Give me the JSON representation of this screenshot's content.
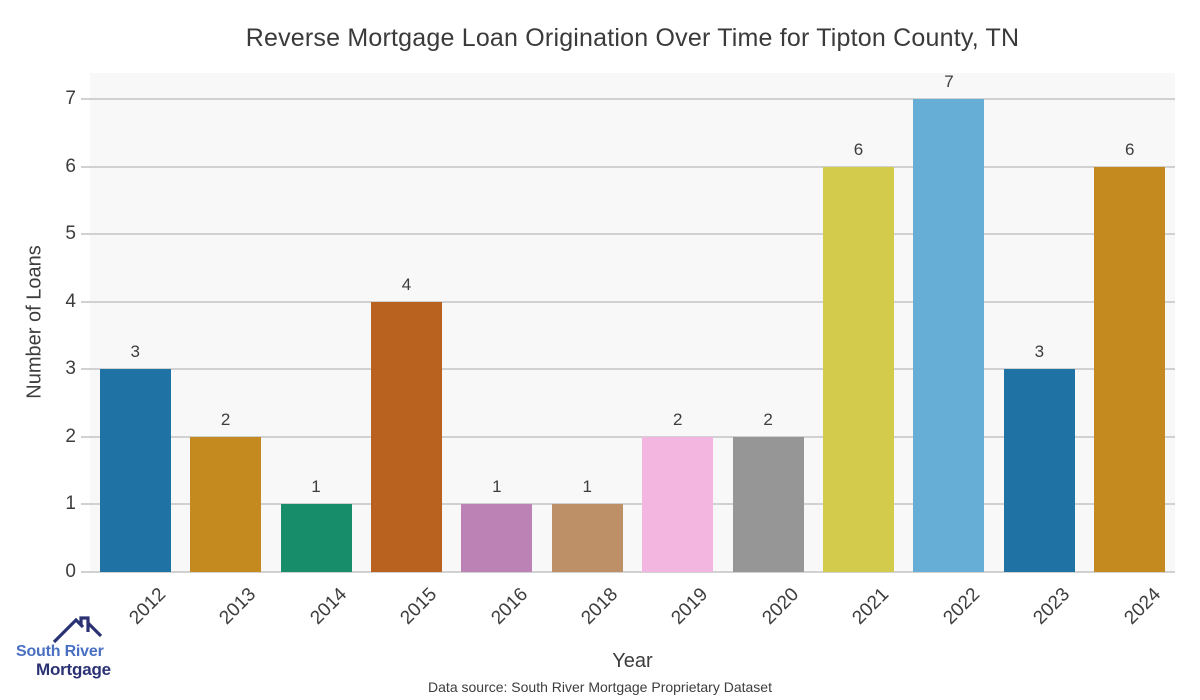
{
  "chart_data": {
    "type": "bar",
    "title": "Reverse Mortgage Loan Origination Over Time for Tipton County, TN",
    "xlabel": "Year",
    "ylabel": "Number of Loans",
    "categories": [
      "2012",
      "2013",
      "2014",
      "2015",
      "2016",
      "2018",
      "2019",
      "2020",
      "2021",
      "2022",
      "2023",
      "2024"
    ],
    "values": [
      3,
      2,
      1,
      4,
      1,
      1,
      2,
      2,
      6,
      7,
      3,
      6
    ],
    "ylim": [
      0,
      7
    ],
    "yticks": [
      0,
      1,
      2,
      3,
      4,
      5,
      6,
      7
    ],
    "grid": true,
    "legend": false,
    "bar_colors": [
      "#1f72a4",
      "#c4891f",
      "#178e69",
      "#b9621f",
      "#bc82b5",
      "#bd9067",
      "#f2b6e1",
      "#969696",
      "#d2cb4b",
      "#67aed6",
      "#1f72a4",
      "#c4891f"
    ],
    "plot_bg": "#f8f8f8",
    "grid_color": "#d1d1d1",
    "label_color": "#3d3d3d",
    "title_color": "#3a3a3a"
  },
  "footer": {
    "source_note": "Data source: South River Mortgage Proprietary Dataset"
  },
  "logo": {
    "line1": "South River",
    "line2": "Mortgage",
    "line1_color": "#4a70c2",
    "line2_color": "#2b3274",
    "roof_color": "#2b3274",
    "icon": "house-roof-icon"
  }
}
